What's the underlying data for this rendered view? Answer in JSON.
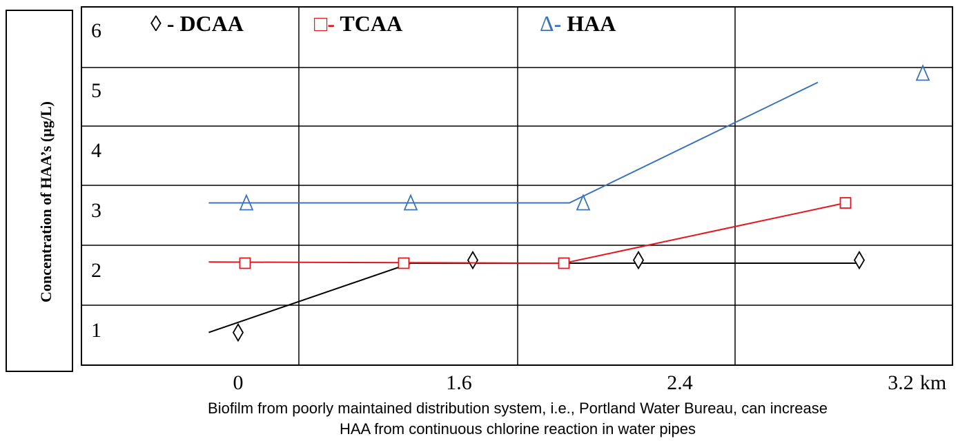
{
  "chart_data": {
    "type": "line",
    "ylabel": "Concentration of HAA’s (µg/L)",
    "xunit": "km",
    "x_ticks": [
      "0",
      "1.6",
      "2.4",
      "3.2"
    ],
    "y_ticks": [
      "1",
      "2",
      "3",
      "4",
      "5",
      "6"
    ],
    "ylim": [
      0,
      6
    ],
    "xlim": [
      -0.8,
      3.2
    ],
    "grid": true,
    "legend_position": "top",
    "series": [
      {
        "name": "DCAA",
        "legend_symbol": "◊",
        "legend_text": " - DCAA",
        "color": "#000000",
        "marker": "diamond",
        "markers": [
          {
            "x": 0.0,
            "y": 0.85
          },
          {
            "x": 1.65,
            "y": 2.05
          },
          {
            "x": 2.25,
            "y": 2.05
          },
          {
            "x": 3.05,
            "y": 2.05
          }
        ],
        "line": [
          {
            "x": -0.15,
            "y": 0.85
          },
          {
            "x": 1.25,
            "y": 2.0
          },
          {
            "x": 3.05,
            "y": 2.0
          }
        ]
      },
      {
        "name": "TCAA",
        "legend_symbol": "□",
        "legend_text": "- TCAA",
        "color": "#e8141c",
        "marker": "square",
        "markers": [
          {
            "x": 0.05,
            "y": 2.0
          },
          {
            "x": 1.2,
            "y": 2.0
          },
          {
            "x": 1.98,
            "y": 2.0
          },
          {
            "x": 3.0,
            "y": 3.0
          }
        ],
        "line": [
          {
            "x": -0.15,
            "y": 2.02
          },
          {
            "x": 1.98,
            "y": 2.0
          },
          {
            "x": 3.0,
            "y": 3.0
          }
        ]
      },
      {
        "name": "HAA",
        "legend_symbol": "Δ",
        "legend_text": "- HAA",
        "color": "#3a73b8",
        "marker": "triangle",
        "markers": [
          {
            "x": 0.06,
            "y": 3.0
          },
          {
            "x": 1.25,
            "y": 3.0
          },
          {
            "x": 2.05,
            "y": 3.0
          },
          {
            "x": 3.28,
            "y": 5.15
          }
        ],
        "line": [
          {
            "x": -0.15,
            "y": 3.0
          },
          {
            "x": 2.0,
            "y": 3.0
          },
          {
            "x": 2.9,
            "y": 5.0
          }
        ]
      }
    ]
  },
  "caption": {
    "line1": "Biofilm from poorly maintained distribution system, i.e., Portland Water Bureau, can increase",
    "line2": "HAA from continuous chlorine reaction in water pipes"
  }
}
